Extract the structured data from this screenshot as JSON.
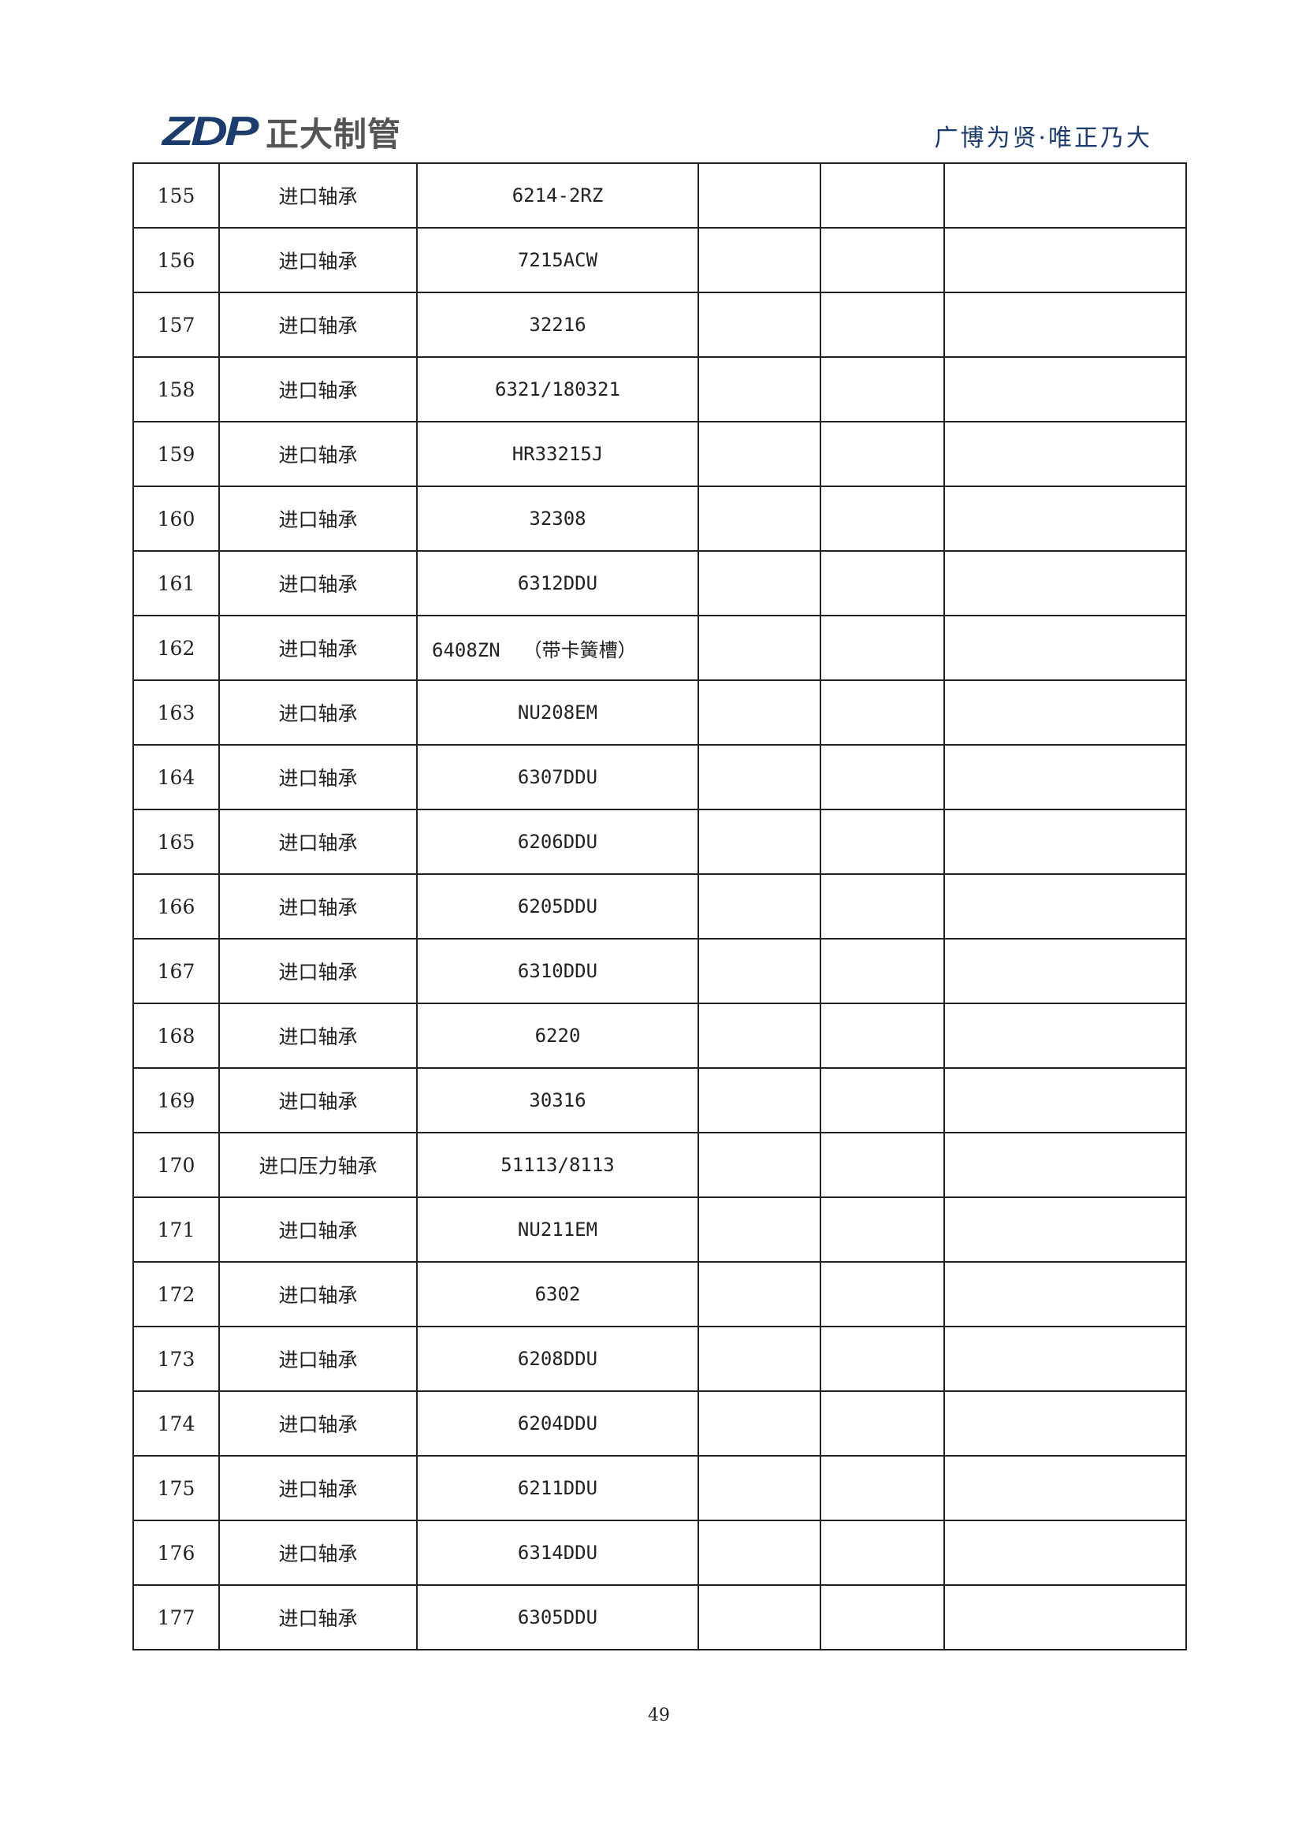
{
  "header": {
    "logo_mark": "ZDP",
    "logo_text": "正大制管",
    "slogan": "广博为贤·唯正乃大",
    "brand_color": "#1d3c6e"
  },
  "rows": [
    [
      "155",
      "进口轴承",
      "6214-2RZ"
    ],
    [
      "156",
      "进口轴承",
      "7215ACW"
    ],
    [
      "157",
      "进口轴承",
      "32216"
    ],
    [
      "158",
      "进口轴承",
      "6321/180321"
    ],
    [
      "159",
      "进口轴承",
      "HR33215J"
    ],
    [
      "160",
      "进口轴承",
      "32308"
    ],
    [
      "161",
      "进口轴承",
      "6312DDU"
    ],
    [
      "162",
      "进口轴承",
      "6408ZN  （带卡簧槽）"
    ],
    [
      "163",
      "进口轴承",
      "NU208EM"
    ],
    [
      "164",
      "进口轴承",
      "6307DDU"
    ],
    [
      "165",
      "进口轴承",
      "6206DDU"
    ],
    [
      "166",
      "进口轴承",
      "6205DDU"
    ],
    [
      "167",
      "进口轴承",
      "6310DDU"
    ],
    [
      "168",
      "进口轴承",
      "6220"
    ],
    [
      "169",
      "进口轴承",
      "30316"
    ],
    [
      "170",
      "进口压力轴承",
      "51113/8113"
    ],
    [
      "171",
      "进口轴承",
      "NU211EM"
    ],
    [
      "172",
      "进口轴承",
      "6302"
    ],
    [
      "173",
      "进口轴承",
      "6208DDU"
    ],
    [
      "174",
      "进口轴承",
      "6204DDU"
    ],
    [
      "175",
      "进口轴承",
      "6211DDU"
    ],
    [
      "176",
      "进口轴承",
      "6314DDU"
    ],
    [
      "177",
      "进口轴承",
      "6305DDU"
    ]
  ],
  "footer": {
    "page_number": "49"
  }
}
